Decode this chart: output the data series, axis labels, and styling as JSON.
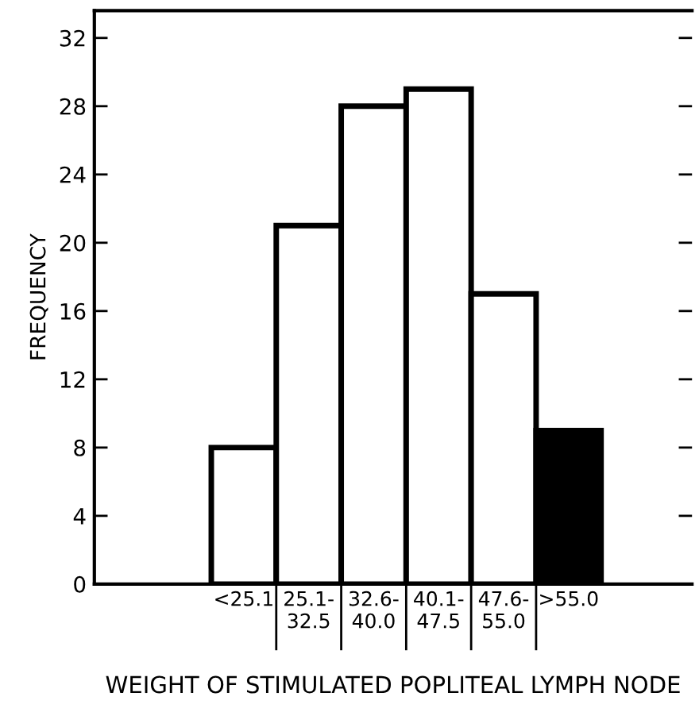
{
  "chart_data": {
    "type": "bar",
    "xlabel": "WEIGHT OF STIMULATED POPLITEAL LYMPH NODE",
    "ylabel": "FREQUENCY",
    "categories": [
      "<25.1",
      "25.1-\n32.5",
      "32.6-\n40.0",
      "40.1-\n47.5",
      "47.6-\n55.0",
      ">55.0"
    ],
    "values": [
      8,
      21,
      28,
      29,
      17,
      9
    ],
    "colors": [
      "#ffffff",
      "#ffffff",
      "#ffffff",
      "#ffffff",
      "#ffffff",
      "#000000"
    ],
    "ylim": [
      0,
      33.6
    ],
    "yticks": [
      0,
      4,
      8,
      12,
      16,
      20,
      24,
      28,
      32
    ],
    "grid": false,
    "legend": false
  }
}
